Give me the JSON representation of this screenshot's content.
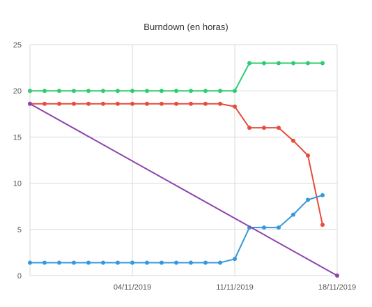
{
  "chart_data": {
    "type": "line",
    "title": "Burndown (en horas)",
    "xlabel": "",
    "ylabel": "",
    "ylim": [
      0,
      25
    ],
    "y_ticks": [
      0,
      5,
      10,
      15,
      20,
      25
    ],
    "x_ticks": [
      "04/11/2019",
      "11/11/2019",
      "18/11/2019"
    ],
    "xlim": [
      "2019-10-28",
      "2019-11-18"
    ],
    "grid": true,
    "legend": "none",
    "series": [
      {
        "color": "#2ecc71",
        "x": [
          "2019-10-28",
          "2019-10-29",
          "2019-10-30",
          "2019-10-31",
          "2019-11-01",
          "2019-11-02",
          "2019-11-03",
          "2019-11-04",
          "2019-11-05",
          "2019-11-06",
          "2019-11-07",
          "2019-11-08",
          "2019-11-09",
          "2019-11-10",
          "2019-11-11",
          "2019-11-12",
          "2019-11-13",
          "2019-11-14",
          "2019-11-15",
          "2019-11-16",
          "2019-11-17"
        ],
        "values": [
          20,
          20,
          20,
          20,
          20,
          20,
          20,
          20,
          20,
          20,
          20,
          20,
          20,
          20,
          20,
          23,
          23,
          23,
          23,
          23,
          23
        ]
      },
      {
        "color": "#e74c3c",
        "x": [
          "2019-10-28",
          "2019-10-29",
          "2019-10-30",
          "2019-10-31",
          "2019-11-01",
          "2019-11-02",
          "2019-11-03",
          "2019-11-04",
          "2019-11-05",
          "2019-11-06",
          "2019-11-07",
          "2019-11-08",
          "2019-11-09",
          "2019-11-10",
          "2019-11-11",
          "2019-11-12",
          "2019-11-13",
          "2019-11-14",
          "2019-11-15",
          "2019-11-16",
          "2019-11-17"
        ],
        "values": [
          18.6,
          18.6,
          18.6,
          18.6,
          18.6,
          18.6,
          18.6,
          18.6,
          18.6,
          18.6,
          18.6,
          18.6,
          18.6,
          18.6,
          18.3,
          16,
          16,
          16,
          14.6,
          13,
          5.5
        ]
      },
      {
        "color": "#3498db",
        "x": [
          "2019-10-28",
          "2019-10-29",
          "2019-10-30",
          "2019-10-31",
          "2019-11-01",
          "2019-11-02",
          "2019-11-03",
          "2019-11-04",
          "2019-11-05",
          "2019-11-06",
          "2019-11-07",
          "2019-11-08",
          "2019-11-09",
          "2019-11-10",
          "2019-11-11",
          "2019-11-12",
          "2019-11-13",
          "2019-11-14",
          "2019-11-15",
          "2019-11-16",
          "2019-11-17"
        ],
        "values": [
          1.4,
          1.4,
          1.4,
          1.4,
          1.4,
          1.4,
          1.4,
          1.4,
          1.4,
          1.4,
          1.4,
          1.4,
          1.4,
          1.4,
          1.8,
          5.2,
          5.2,
          5.2,
          6.6,
          8.2,
          8.7
        ]
      },
      {
        "color": "#8e44ad",
        "x": [
          "2019-10-28",
          "2019-11-18"
        ],
        "values": [
          18.6,
          0
        ]
      }
    ]
  }
}
